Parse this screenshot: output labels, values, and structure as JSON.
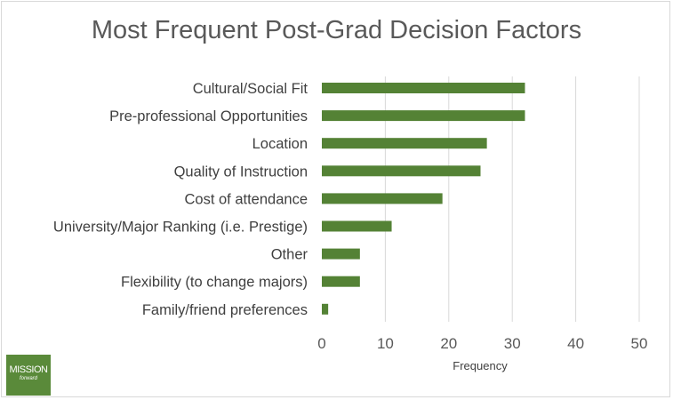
{
  "chart_data": {
    "type": "bar",
    "orientation": "horizontal",
    "title": "Most Frequent Post-Grad Decision Factors",
    "xlabel": "Frequency",
    "ylabel": "",
    "xlim": [
      0,
      50
    ],
    "xticks": [
      0,
      10,
      20,
      30,
      40,
      50
    ],
    "grid": true,
    "legend": "none",
    "bar_color": "#548235",
    "categories": [
      "Cultural/Social Fit",
      "Pre-professional Opportunities",
      "Location",
      "Quality of Instruction",
      "Cost of attendance",
      "University/Major Ranking (i.e. Prestige)",
      "Other",
      "Flexibility (to change majors)",
      "Family/friend preferences"
    ],
    "values": [
      32,
      32,
      26,
      25,
      19,
      11,
      6,
      6,
      1
    ]
  },
  "logo": {
    "line1": "MISSION",
    "line2": "forward"
  }
}
